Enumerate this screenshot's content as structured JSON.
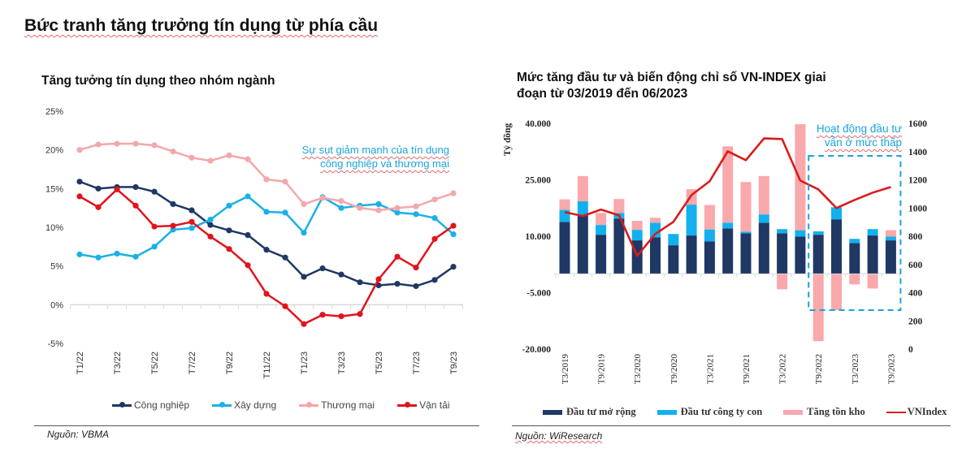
{
  "page": {
    "title": "Bức tranh tăng trưởng tín dụng từ phía cầu"
  },
  "colors": {
    "cong_nghiep": "#1f3864",
    "xay_dung": "#1ab0e8",
    "thuong_mai": "#f4a7ab",
    "van_tai": "#e0141e",
    "dau_tu_mo_rong": "#1f3864",
    "dau_tu_cong_ty_con": "#12b0ef",
    "tang_ton_kho": "#f9a8ac",
    "vnindex": "#d81b1b",
    "annotation": "#1aa3dd"
  },
  "left_panel": {
    "source": "Nguồn: VBMA",
    "annotation_line1": "Sự sụt giảm mạnh của tín dụng",
    "annotation_line2": "công nghiệp và thương mại"
  },
  "right_panel": {
    "source": "Nguồn: WiResearch",
    "annotation_line1": "Hoạt động đầu tư",
    "annotation_line2": "vẫn ở mức thấp"
  },
  "chart_data": [
    {
      "type": "line",
      "title": "Tăng tưởng tín dụng theo nhóm ngành",
      "xlabel": "",
      "ylabel": "",
      "ylim": [
        -5,
        25
      ],
      "yticks": [
        25,
        20,
        15,
        10,
        5,
        0,
        -5
      ],
      "ytick_labels": [
        "25%",
        "20%",
        "15%",
        "10%",
        "5%",
        "0%",
        "-5%"
      ],
      "x": [
        "T1/22",
        "T2/22",
        "T3/22",
        "T4/22",
        "T5/22",
        "T6/22",
        "T7/22",
        "T8/22",
        "T9/22",
        "T10/22",
        "T11/22",
        "T12/22",
        "T1/23",
        "T2/23",
        "T3/23",
        "T4/23",
        "T5/23",
        "T6/23",
        "T7/23",
        "T8/23",
        "T9/23"
      ],
      "xtick_labels": [
        "T1/22",
        "T3/22",
        "T5/22",
        "T7/22",
        "T9/22",
        "T11/22",
        "T1/23",
        "T3/23",
        "T5/23",
        "T7/23",
        "T9/23"
      ],
      "grid": false,
      "legend_position": "bottom",
      "series": [
        {
          "name": "Công nghiệp",
          "values": [
            15.9,
            15.0,
            15.2,
            15.2,
            14.6,
            13.0,
            12.2,
            10.3,
            9.6,
            9.0,
            7.1,
            6.1,
            3.6,
            4.7,
            3.9,
            2.9,
            2.5,
            2.7,
            2.4,
            3.2,
            4.9
          ]
        },
        {
          "name": "Xây dựng",
          "values": [
            6.5,
            6.1,
            6.6,
            6.2,
            7.5,
            9.7,
            9.9,
            11.0,
            12.8,
            14.0,
            12.0,
            11.9,
            9.3,
            13.9,
            12.5,
            12.8,
            13.0,
            11.9,
            11.7,
            11.2,
            9.1
          ]
        },
        {
          "name": "Thương mại",
          "values": [
            20.0,
            20.7,
            20.8,
            20.8,
            20.6,
            19.8,
            19.0,
            18.6,
            19.3,
            18.8,
            16.2,
            15.9,
            13.0,
            13.8,
            13.4,
            12.5,
            12.2,
            12.5,
            12.7,
            13.6,
            14.4
          ]
        },
        {
          "name": "Vận tải",
          "values": [
            14.0,
            12.6,
            14.9,
            12.8,
            10.1,
            10.2,
            10.7,
            8.8,
            7.2,
            5.1,
            1.4,
            -0.2,
            -2.5,
            -1.3,
            -1.5,
            -1.2,
            3.3,
            6.2,
            4.8,
            8.5,
            10.2
          ]
        }
      ]
    },
    {
      "type": "bar",
      "stacked": true,
      "title": "Mức tăng đầu tư và biến động chỉ số VN-INDEX giai đoạn từ 03/2019 đến 06/2023",
      "ylabel": "Tỷ đồng",
      "ylim": [
        -20000,
        40000
      ],
      "yticks": [
        40000,
        25000,
        10000,
        -5000,
        -20000
      ],
      "ytick_labels": [
        "40.000",
        "25.000",
        "10.000",
        "-5.000",
        "-20.000"
      ],
      "y2lim": [
        0,
        1600
      ],
      "y2ticks": [
        1600,
        1400,
        1200,
        1000,
        800,
        600,
        400,
        200,
        0
      ],
      "y2tick_labels": [
        "1600",
        "1400",
        "1200",
        "1000",
        "800",
        "600",
        "400",
        "200",
        "0"
      ],
      "categories": [
        "T3/2019",
        "T6/2019",
        "T9/2019",
        "T12/2019",
        "T3/2020",
        "T6/2020",
        "T9/2020",
        "T12/2020",
        "T3/2021",
        "T6/2021",
        "T9/2021",
        "T12/2021",
        "T3/2022",
        "T6/2022",
        "T9/2022",
        "T12/2022",
        "T3/2023",
        "T6/2023",
        "T9/2023"
      ],
      "xtick_labels": [
        "T3/2019",
        "T9/2019",
        "T3/2020",
        "T9/2020",
        "T3/2021",
        "T9/2021",
        "T3/2022",
        "T9/2022",
        "T3/2023",
        "T9/2023"
      ],
      "legend_position": "bottom",
      "series": [
        {
          "name": "Đầu tư mở rộng",
          "kind": "bar",
          "values": [
            13800,
            15600,
            10400,
            14700,
            8900,
            9700,
            7600,
            10200,
            8600,
            12100,
            10800,
            13600,
            10800,
            9900,
            10400,
            14500,
            8200,
            10200,
            8900
          ]
        },
        {
          "name": "Đầu tư công ty con",
          "kind": "bar",
          "values": [
            3200,
            3700,
            2600,
            1500,
            2800,
            3900,
            3000,
            8200,
            3200,
            1500,
            400,
            2200,
            1100,
            1700,
            900,
            3200,
            1100,
            1700,
            1000
          ]
        },
        {
          "name": "Tăng tồn kho",
          "kind": "bar",
          "values": [
            2800,
            6700,
            3200,
            3700,
            2400,
            1300,
            0,
            4100,
            6500,
            20300,
            13200,
            10200,
            -4100,
            28200,
            -17900,
            -9700,
            -2800,
            -3900,
            1700
          ]
        },
        {
          "name": "VNIndex",
          "kind": "line",
          "axis": "right",
          "values": [
            971,
            943,
            989,
            948,
            661,
            816,
            902,
            1092,
            1190,
            1402,
            1339,
            1494,
            1489,
            1195,
            1132,
            1000,
            1057,
            1109,
            1149
          ]
        }
      ]
    }
  ]
}
